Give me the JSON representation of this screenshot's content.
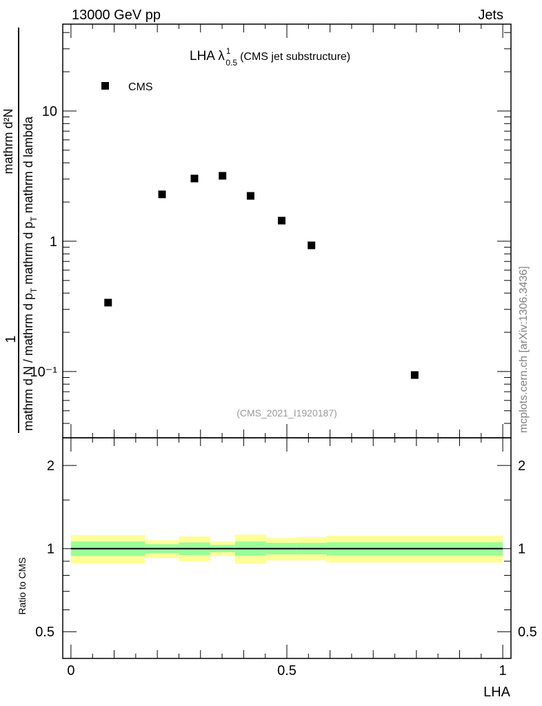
{
  "header": {
    "left": "13000 GeV pp",
    "right": "Jets"
  },
  "side_label": "mcplots.cern.ch [arXiv:1306.3436]",
  "chart_data": [
    {
      "type": "scatter",
      "title": "LHA λ",
      "title_sup": "1",
      "title_sub": "0.5",
      "title_suffix": "(CMS jet substructure)",
      "analysis_label": "(CMS_2021_I1920187)",
      "ylabel_numerator": "1",
      "ylabel_denominator": "mathrm d N / mathrm d p",
      "ylabel_den_sub": "T",
      "ylabel_inner_num": "mathrm d²N",
      "ylabel_inner_den": "mathrm d p",
      "ylabel_inner_den_sub": "T",
      "ylabel_inner_den_suffix": " mathrm d lambda",
      "yscale": "log",
      "ylim": [
        0.031,
        46.4
      ],
      "xlim": [
        -0.019,
        1.019
      ],
      "yticks": [
        {
          "v": 0.1,
          "label": "10⁻¹"
        },
        {
          "v": 1,
          "label": "1"
        },
        {
          "v": 10,
          "label": "10"
        }
      ],
      "legend": [
        {
          "name": "CMS",
          "marker": "square",
          "color": "#000000"
        }
      ],
      "legend_position": "top-left",
      "series": [
        {
          "name": "CMS",
          "x": [
            0.086,
            0.211,
            0.286,
            0.351,
            0.416,
            0.488,
            0.557,
            0.796
          ],
          "y": [
            0.338,
            2.29,
            3.03,
            3.18,
            2.23,
            1.44,
            0.93,
            0.094
          ]
        }
      ]
    },
    {
      "type": "area",
      "ylabel": "Ratio to CMS",
      "xlabel": "LHA",
      "yscale": "log2",
      "ylim": [
        0.4,
        2.52
      ],
      "xlim": [
        -0.019,
        1.019
      ],
      "xticks": [
        {
          "v": 0,
          "label": "0"
        },
        {
          "v": 0.5,
          "label": "0.5"
        },
        {
          "v": 1,
          "label": "1"
        }
      ],
      "yticks": [
        {
          "v": 0.5,
          "label": "0.5"
        },
        {
          "v": 1,
          "label": "1"
        },
        {
          "v": 2,
          "label": "2"
        }
      ],
      "bin_edges": [
        0,
        0.172,
        0.25,
        0.322,
        0.38,
        0.452,
        0.523,
        0.592,
        1.0
      ],
      "total_band": {
        "color": "#ffff99",
        "lo": [
          0.885,
          0.924,
          0.899,
          0.94,
          0.881,
          0.906,
          0.906,
          0.89
        ],
        "hi": [
          1.12,
          1.073,
          1.106,
          1.061,
          1.124,
          1.092,
          1.1,
          1.113
        ]
      },
      "stat_band": {
        "color": "#99ff99",
        "lo": [
          0.94,
          0.962,
          0.948,
          0.97,
          0.943,
          0.953,
          0.953,
          0.944
        ],
        "hi": [
          1.061,
          1.037,
          1.053,
          1.031,
          1.061,
          1.049,
          1.049,
          1.055
        ]
      },
      "reference_line": 1
    }
  ]
}
